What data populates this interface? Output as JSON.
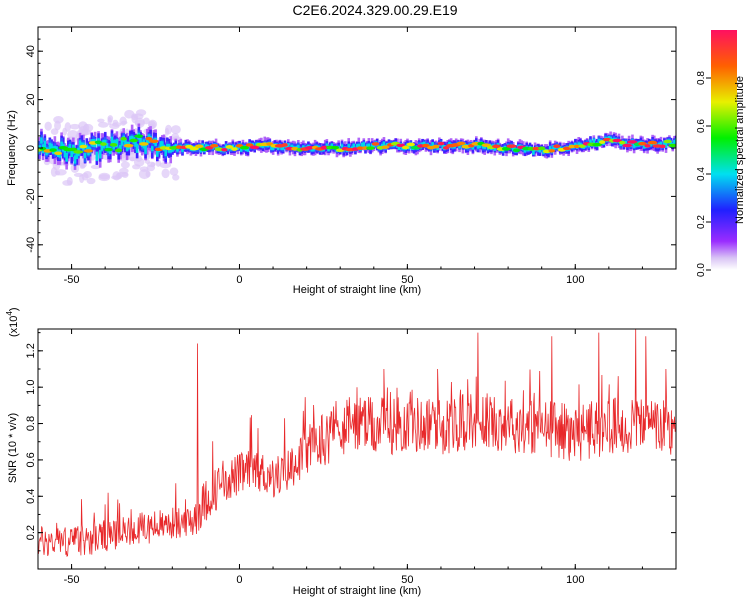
{
  "title": "C2E6.2024.329.00.29.E19",
  "chart_data": [
    {
      "type": "heatmap",
      "name": "spectrogram",
      "xlabel": "Height of straight line (km)",
      "ylabel": "Frequency (Hz)",
      "xlim": [
        -60,
        130
      ],
      "ylim": [
        -50,
        50
      ],
      "xticks": [
        -50,
        0,
        50,
        100
      ],
      "yticks": [
        -40,
        -20,
        0,
        20,
        40
      ],
      "colorbar": {
        "label": "Normalized spectral amplitude",
        "range": [
          0,
          1
        ],
        "ticks": [
          "0.0",
          "0.2",
          "0.4",
          "0.6",
          "0.8"
        ]
      },
      "band_center_hz": [
        [
          -60,
          1
        ],
        [
          -50,
          -2
        ],
        [
          -40,
          0
        ],
        [
          -30,
          2
        ],
        [
          -20,
          0
        ],
        [
          -10,
          0
        ],
        [
          0,
          0
        ],
        [
          10,
          1
        ],
        [
          20,
          0
        ],
        [
          30,
          0
        ],
        [
          40,
          1
        ],
        [
          50,
          1
        ],
        [
          60,
          1
        ],
        [
          70,
          1
        ],
        [
          80,
          0
        ],
        [
          90,
          -1
        ],
        [
          100,
          1
        ],
        [
          110,
          3
        ],
        [
          120,
          1
        ],
        [
          130,
          2
        ]
      ]
    },
    {
      "type": "line",
      "name": "snr",
      "xlabel": "Height of straight line (km)",
      "ylabel": "SNR (10 * v/v)",
      "exponent_label": "(x10",
      "exponent_value": "4",
      "xlim": [
        -60,
        130
      ],
      "ylim": [
        0,
        1.32
      ],
      "xticks": [
        -50,
        0,
        50,
        100
      ],
      "yticks": [
        "0.2",
        "0.4",
        "0.6",
        "0.8",
        "1.0",
        "1.2"
      ],
      "color": "#e8282a",
      "trend": {
        "x": [
          -60,
          -50,
          -40,
          -30,
          -20,
          -15,
          -10,
          -5,
          0,
          5,
          10,
          15,
          20,
          25,
          30,
          35,
          40,
          50,
          60,
          70,
          80,
          90,
          100,
          110,
          120,
          130
        ],
        "y": [
          0.15,
          0.15,
          0.18,
          0.22,
          0.25,
          0.25,
          0.38,
          0.48,
          0.52,
          0.55,
          0.5,
          0.55,
          0.65,
          0.72,
          0.78,
          0.8,
          0.78,
          0.8,
          0.78,
          0.82,
          0.8,
          0.78,
          0.75,
          0.78,
          0.8,
          0.75
        ]
      },
      "spikes": [
        {
          "x": -12.5,
          "y": 1.24
        },
        {
          "x": 35,
          "y": 1.0
        },
        {
          "x": 43,
          "y": 1.1
        },
        {
          "x": 59,
          "y": 1.1
        },
        {
          "x": 71,
          "y": 1.3
        },
        {
          "x": 93,
          "y": 1.28
        },
        {
          "x": 107,
          "y": 1.3
        },
        {
          "x": 118,
          "y": 1.32
        },
        {
          "x": 121,
          "y": 1.28
        },
        {
          "x": 127,
          "y": 1.1
        },
        {
          "x": 130,
          "y": 1.05
        }
      ]
    }
  ]
}
